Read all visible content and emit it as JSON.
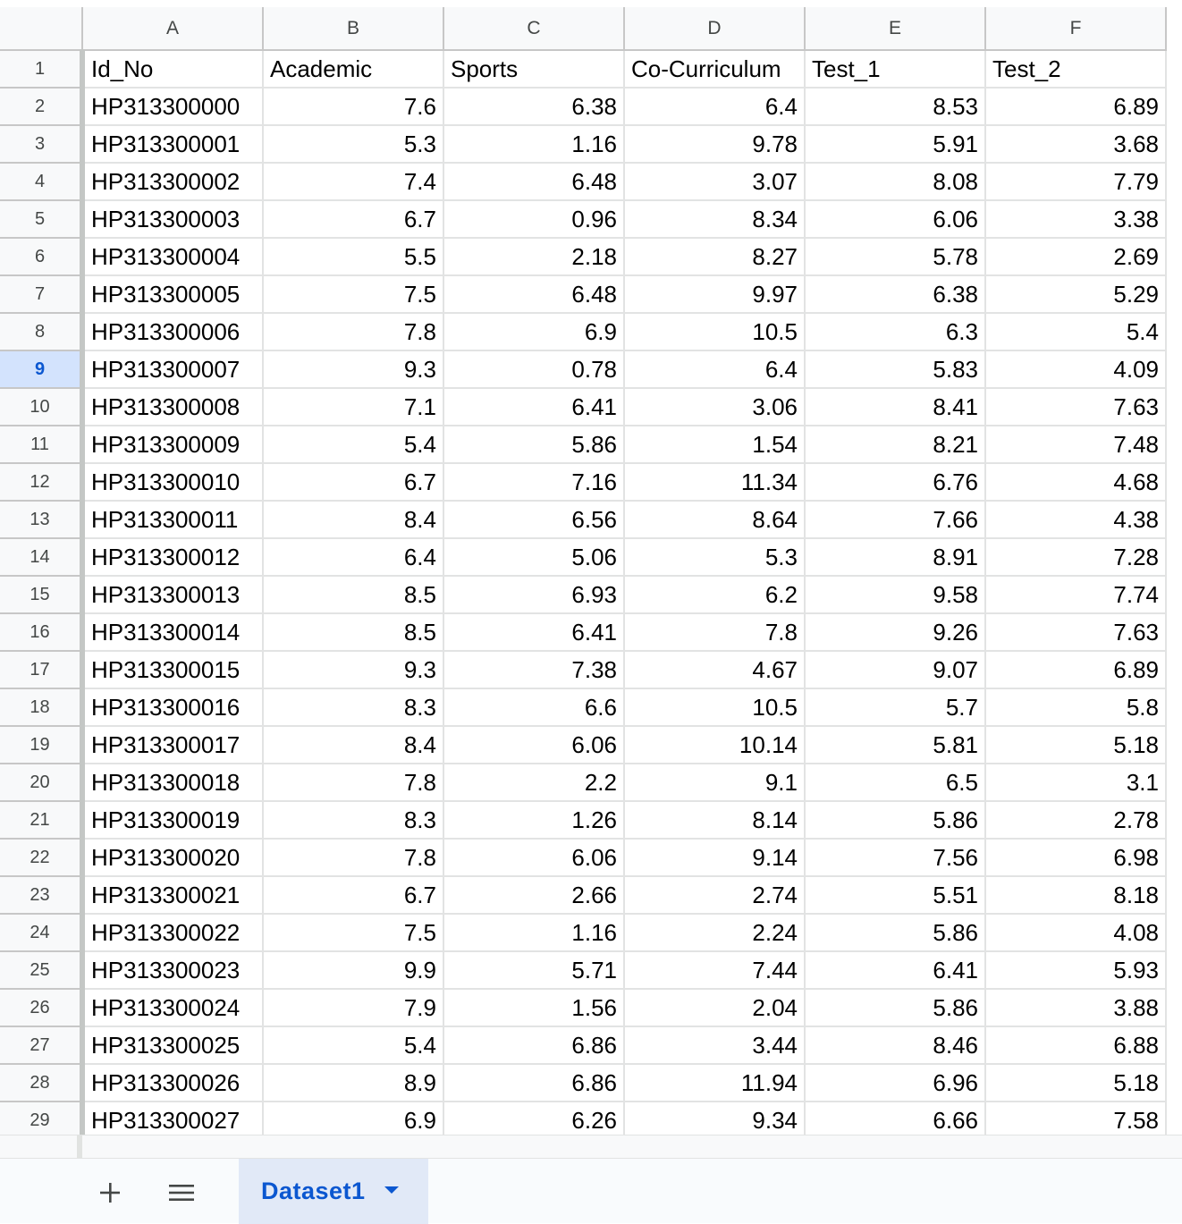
{
  "spreadsheet": {
    "column_letters": [
      "A",
      "B",
      "C",
      "D",
      "E",
      "F"
    ],
    "header_row": {
      "row_number": "1",
      "cells": [
        "Id_No",
        "Academic",
        "Sports",
        "Co-Curriculum",
        "Test_1",
        "Test_2"
      ]
    },
    "active_row": "9",
    "rows": [
      {
        "n": "2",
        "cells": [
          "HP313300000",
          "7.6",
          "6.38",
          "6.4",
          "8.53",
          "6.89"
        ]
      },
      {
        "n": "3",
        "cells": [
          "HP313300001",
          "5.3",
          "1.16",
          "9.78",
          "5.91",
          "3.68"
        ]
      },
      {
        "n": "4",
        "cells": [
          "HP313300002",
          "7.4",
          "6.48",
          "3.07",
          "8.08",
          "7.79"
        ]
      },
      {
        "n": "5",
        "cells": [
          "HP313300003",
          "6.7",
          "0.96",
          "8.34",
          "6.06",
          "3.38"
        ]
      },
      {
        "n": "6",
        "cells": [
          "HP313300004",
          "5.5",
          "2.18",
          "8.27",
          "5.78",
          "2.69"
        ]
      },
      {
        "n": "7",
        "cells": [
          "HP313300005",
          "7.5",
          "6.48",
          "9.97",
          "6.38",
          "5.29"
        ]
      },
      {
        "n": "8",
        "cells": [
          "HP313300006",
          "7.8",
          "6.9",
          "10.5",
          "6.3",
          "5.4"
        ]
      },
      {
        "n": "9",
        "cells": [
          "HP313300007",
          "9.3",
          "0.78",
          "6.4",
          "5.83",
          "4.09"
        ]
      },
      {
        "n": "10",
        "cells": [
          "HP313300008",
          "7.1",
          "6.41",
          "3.06",
          "8.41",
          "7.63"
        ]
      },
      {
        "n": "11",
        "cells": [
          "HP313300009",
          "5.4",
          "5.86",
          "1.54",
          "8.21",
          "7.48"
        ]
      },
      {
        "n": "12",
        "cells": [
          "HP313300010",
          "6.7",
          "7.16",
          "11.34",
          "6.76",
          "4.68"
        ]
      },
      {
        "n": "13",
        "cells": [
          "HP313300011",
          "8.4",
          "6.56",
          "8.64",
          "7.66",
          "4.38"
        ]
      },
      {
        "n": "14",
        "cells": [
          "HP313300012",
          "6.4",
          "5.06",
          "5.3",
          "8.91",
          "7.28"
        ]
      },
      {
        "n": "15",
        "cells": [
          "HP313300013",
          "8.5",
          "6.93",
          "6.2",
          "9.58",
          "7.74"
        ]
      },
      {
        "n": "16",
        "cells": [
          "HP313300014",
          "8.5",
          "6.41",
          "7.8",
          "9.26",
          "7.63"
        ]
      },
      {
        "n": "17",
        "cells": [
          "HP313300015",
          "9.3",
          "7.38",
          "4.67",
          "9.07",
          "6.89"
        ]
      },
      {
        "n": "18",
        "cells": [
          "HP313300016",
          "8.3",
          "6.6",
          "10.5",
          "5.7",
          "5.8"
        ]
      },
      {
        "n": "19",
        "cells": [
          "HP313300017",
          "8.4",
          "6.06",
          "10.14",
          "5.81",
          "5.18"
        ]
      },
      {
        "n": "20",
        "cells": [
          "HP313300018",
          "7.8",
          "2.2",
          "9.1",
          "6.5",
          "3.1"
        ]
      },
      {
        "n": "21",
        "cells": [
          "HP313300019",
          "8.3",
          "1.26",
          "8.14",
          "5.86",
          "2.78"
        ]
      },
      {
        "n": "22",
        "cells": [
          "HP313300020",
          "7.8",
          "6.06",
          "9.14",
          "7.56",
          "6.98"
        ]
      },
      {
        "n": "23",
        "cells": [
          "HP313300021",
          "6.7",
          "2.66",
          "2.74",
          "5.51",
          "8.18"
        ]
      },
      {
        "n": "24",
        "cells": [
          "HP313300022",
          "7.5",
          "1.16",
          "2.24",
          "5.86",
          "4.08"
        ]
      },
      {
        "n": "25",
        "cells": [
          "HP313300023",
          "9.9",
          "5.71",
          "7.44",
          "6.41",
          "5.93"
        ]
      },
      {
        "n": "26",
        "cells": [
          "HP313300024",
          "7.9",
          "1.56",
          "2.04",
          "5.86",
          "3.88"
        ]
      },
      {
        "n": "27",
        "cells": [
          "HP313300025",
          "5.4",
          "6.86",
          "3.44",
          "8.46",
          "6.88"
        ]
      },
      {
        "n": "28",
        "cells": [
          "HP313300026",
          "8.9",
          "6.86",
          "11.94",
          "6.96",
          "5.18"
        ]
      },
      {
        "n": "29",
        "cells": [
          "HP313300027",
          "6.9",
          "6.26",
          "9.34",
          "6.66",
          "7.58"
        ]
      }
    ]
  },
  "sheet_tabs": {
    "add_icon": "plus-icon",
    "menu_icon": "list-icon",
    "active_tab": "Dataset1",
    "tab_dropdown_icon": "caret-down-icon"
  },
  "colors": {
    "accent": "#0b57d0",
    "active_row_header_bg": "#d3e3fd",
    "tab_bg": "#e1e9f7"
  }
}
